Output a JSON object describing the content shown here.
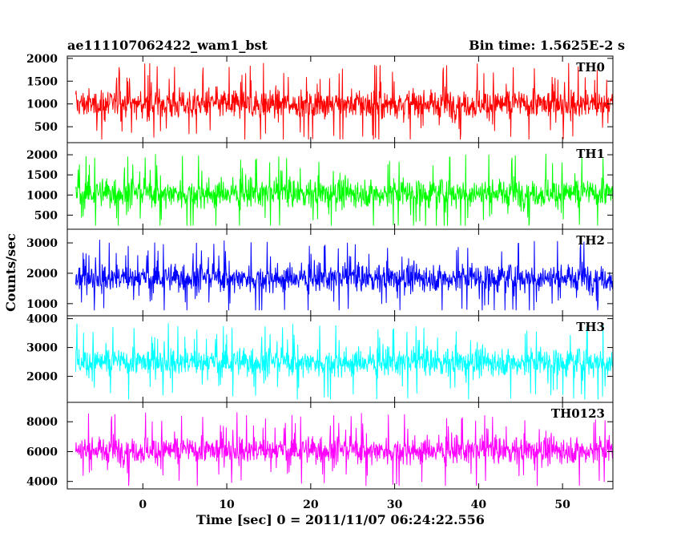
{
  "chart_data": {
    "type": "line",
    "title_left": "ae111107062422_wam1_bst",
    "title_right": "Bin time: 1.5625E-2 s",
    "xlabel": "Time [sec] 0 = 2011/11/07 06:24:22.556",
    "ylabel": "Counts/sec",
    "xlim": [
      -9,
      56
    ],
    "x_ticks": [
      "0",
      "10",
      "20",
      "30",
      "40",
      "50"
    ],
    "x_tick_values": [
      0,
      10,
      20,
      30,
      40,
      50
    ],
    "data_x_range": [
      -8,
      56
    ],
    "panels": [
      {
        "name": "TH0",
        "color": "#ff0000",
        "ylim": [
          150,
          2050
        ],
        "y_ticks": [
          "500",
          "1000",
          "1500",
          "2000"
        ],
        "y_tick_values": [
          500,
          1000,
          1500,
          2000
        ],
        "mean": 1000,
        "spread": 300,
        "min": 220,
        "max": 2050
      },
      {
        "name": "TH1",
        "color": "#00ff00",
        "ylim": [
          150,
          2300
        ],
        "y_ticks": [
          "500",
          "1000",
          "1500",
          "2000"
        ],
        "y_tick_values": [
          500,
          1000,
          1500,
          2000
        ],
        "mean": 1050,
        "spread": 330,
        "min": 240,
        "max": 2250
      },
      {
        "name": "TH2",
        "color": "#0000ff",
        "ylim": [
          600,
          3450
        ],
        "y_ticks": [
          "1000",
          "2000",
          "3000"
        ],
        "y_tick_values": [
          1000,
          2000,
          3000
        ],
        "mean": 1850,
        "spread": 420,
        "min": 780,
        "max": 3350
      },
      {
        "name": "TH3",
        "color": "#00ffff",
        "ylim": [
          1100,
          4100
        ],
        "y_ticks": [
          "2000",
          "3000",
          "4000"
        ],
        "y_tick_values": [
          2000,
          3000,
          4000
        ],
        "mean": 2500,
        "spread": 450,
        "min": 1200,
        "max": 4000
      },
      {
        "name": "TH0123",
        "color": "#ff00ff",
        "ylim": [
          3500,
          9300
        ],
        "y_ticks": [
          "4000",
          "6000",
          "8000"
        ],
        "y_tick_values": [
          4000,
          6000,
          8000
        ],
        "mean": 6100,
        "spread": 850,
        "min": 3700,
        "max": 9200
      }
    ]
  }
}
